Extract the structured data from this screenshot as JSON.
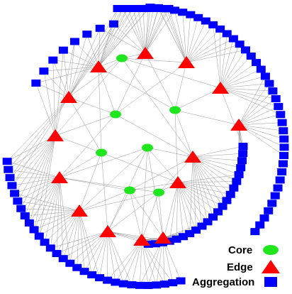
{
  "legend": {
    "core_label": "Core",
    "edge_label": "Edge",
    "aggregation_label": "Aggregation"
  },
  "colors": {
    "core": "#1fe61f",
    "edge": "#ff0000",
    "aggregation": "#0000ff",
    "link": "#8c8c8c",
    "background": "#ffffff"
  },
  "icons": {
    "core": "green-ellipse-icon",
    "edge": "red-triangle-icon",
    "aggregation": "blue-square-icon"
  }
}
